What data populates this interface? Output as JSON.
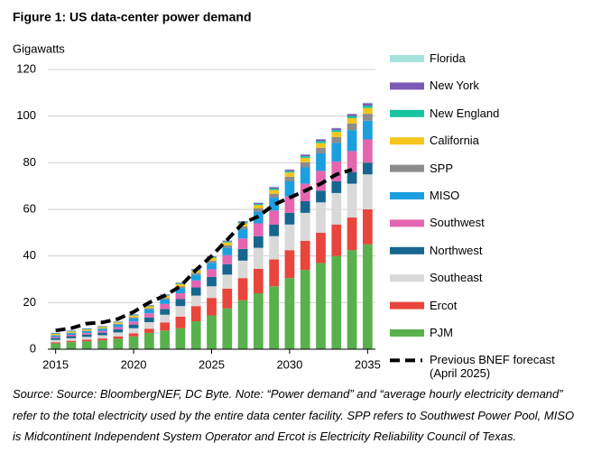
{
  "chart_data": {
    "type": "bar",
    "stacked": true,
    "title": "Figure 1:  US data-center power demand",
    "y_label": "Gigawatts",
    "note": "Source: Source: BloombergNEF, DC Byte. Note: “Power demand” and “average hourly electricity demand” refer to the total electricity used by the entire data center facility. SPP refers to Southwest Power Pool, MISO is Midcontinent Independent System Operator and Ercot is Electricity Reliability Council of Texas.",
    "x": [
      2015,
      2016,
      2017,
      2018,
      2019,
      2020,
      2021,
      2022,
      2023,
      2024,
      2025,
      2026,
      2027,
      2028,
      2029,
      2030,
      2031,
      2032,
      2033,
      2034,
      2035
    ],
    "xlim": [
      2014.5,
      2035.5
    ],
    "xticks": [
      2015,
      2020,
      2025,
      2030,
      2035
    ],
    "ylim": [
      0,
      120
    ],
    "yticks": [
      0,
      20,
      40,
      60,
      80,
      100,
      120
    ],
    "grid": true,
    "legend": "right",
    "series": [
      {
        "name": "PJM",
        "color": "#58b14c",
        "values": [
          2.5,
          3,
          3.4,
          3.8,
          4.5,
          5.5,
          7,
          8,
          9,
          12,
          14.5,
          17.5,
          21,
          24,
          27,
          30.5,
          34,
          37,
          40,
          42.5,
          45
        ]
      },
      {
        "name": "Ercot",
        "color": "#e8453c",
        "values": [
          0.5,
          0.6,
          0.7,
          0.8,
          1,
          1.3,
          1.8,
          3.5,
          5,
          6.5,
          7.5,
          8.5,
          9.5,
          10.5,
          11.5,
          12,
          12.5,
          13,
          13.5,
          14,
          15
        ]
      },
      {
        "name": "Southeast",
        "color": "#d9d9d9",
        "values": [
          1,
          1.1,
          1.2,
          1.4,
          1.7,
          2.2,
          2.8,
          3.3,
          4.5,
          4.5,
          5,
          6,
          7.5,
          9,
          10,
          11,
          12,
          13,
          13.5,
          14.5,
          15
        ]
      },
      {
        "name": "Northwest",
        "color": "#17668f",
        "values": [
          0.8,
          0.9,
          1,
          1.1,
          1.3,
          1.6,
          2,
          2.4,
          3,
          3.5,
          4,
          4.5,
          5,
          5,
          5,
          5,
          5,
          5,
          5,
          5,
          5
        ]
      },
      {
        "name": "Southwest",
        "color": "#e466b0",
        "values": [
          0.5,
          0.6,
          0.7,
          0.8,
          1,
          1.3,
          1.8,
          2.2,
          2.5,
          3,
          3.3,
          3.8,
          4.5,
          5.5,
          6,
          7,
          7.5,
          8.5,
          8.5,
          9,
          10
        ]
      },
      {
        "name": "MISO",
        "color": "#1c9fdf",
        "values": [
          0.6,
          0.7,
          0.8,
          0.9,
          1.1,
          1.4,
          1.7,
          2,
          2.2,
          2.5,
          2.8,
          3.3,
          4,
          5,
          5.5,
          6.5,
          7,
          7.5,
          8,
          9,
          8
        ]
      },
      {
        "name": "SPP",
        "color": "#8c8c8c",
        "values": [
          0.2,
          0.2,
          0.2,
          0.2,
          0.3,
          0.4,
          0.5,
          0.6,
          0.7,
          0.8,
          0.9,
          1,
          1.2,
          1.4,
          1.7,
          2,
          2.2,
          2.4,
          2.5,
          2.8,
          3
        ]
      },
      {
        "name": "California",
        "color": "#f6c51b",
        "values": [
          0.5,
          0.5,
          0.5,
          0.5,
          0.6,
          0.7,
          0.8,
          0.9,
          1,
          1,
          1.1,
          1.2,
          1.3,
          1.4,
          1.6,
          1.8,
          1.9,
          2,
          2.2,
          2.3,
          2.5
        ]
      },
      {
        "name": "New England",
        "color": "#19c4a0",
        "values": [
          0.2,
          0.2,
          0.2,
          0.2,
          0.2,
          0.2,
          0.2,
          0.3,
          0.3,
          0.3,
          0.3,
          0.4,
          0.4,
          0.5,
          0.6,
          0.6,
          0.7,
          0.8,
          0.8,
          0.9,
          1
        ]
      },
      {
        "name": "New York",
        "color": "#7c5bb5",
        "values": [
          0.2,
          0.2,
          0.2,
          0.2,
          0.2,
          0.3,
          0.3,
          0.3,
          0.3,
          0.3,
          0.4,
          0.4,
          0.5,
          0.5,
          0.6,
          0.6,
          0.7,
          0.8,
          0.8,
          0.9,
          1
        ]
      },
      {
        "name": "Florida",
        "color": "#a6e3dd",
        "values": [
          0.1,
          0.1,
          0.1,
          0.1,
          0.1,
          0.1,
          0.1,
          0.1,
          0.1,
          0.1,
          0.1,
          0.1,
          0.1,
          0.2,
          0.2,
          0.2,
          0.2,
          0.2,
          0.2,
          0.2,
          0.3
        ]
      },
      {
        "name": "Previous BNEF forecast (April 2025)",
        "type": "line",
        "color": "#000000",
        "values": [
          8,
          9,
          11,
          11.5,
          13,
          16,
          20,
          23,
          27,
          34,
          40,
          47,
          54,
          57,
          62,
          65,
          68,
          71,
          75,
          77,
          null
        ]
      }
    ]
  }
}
